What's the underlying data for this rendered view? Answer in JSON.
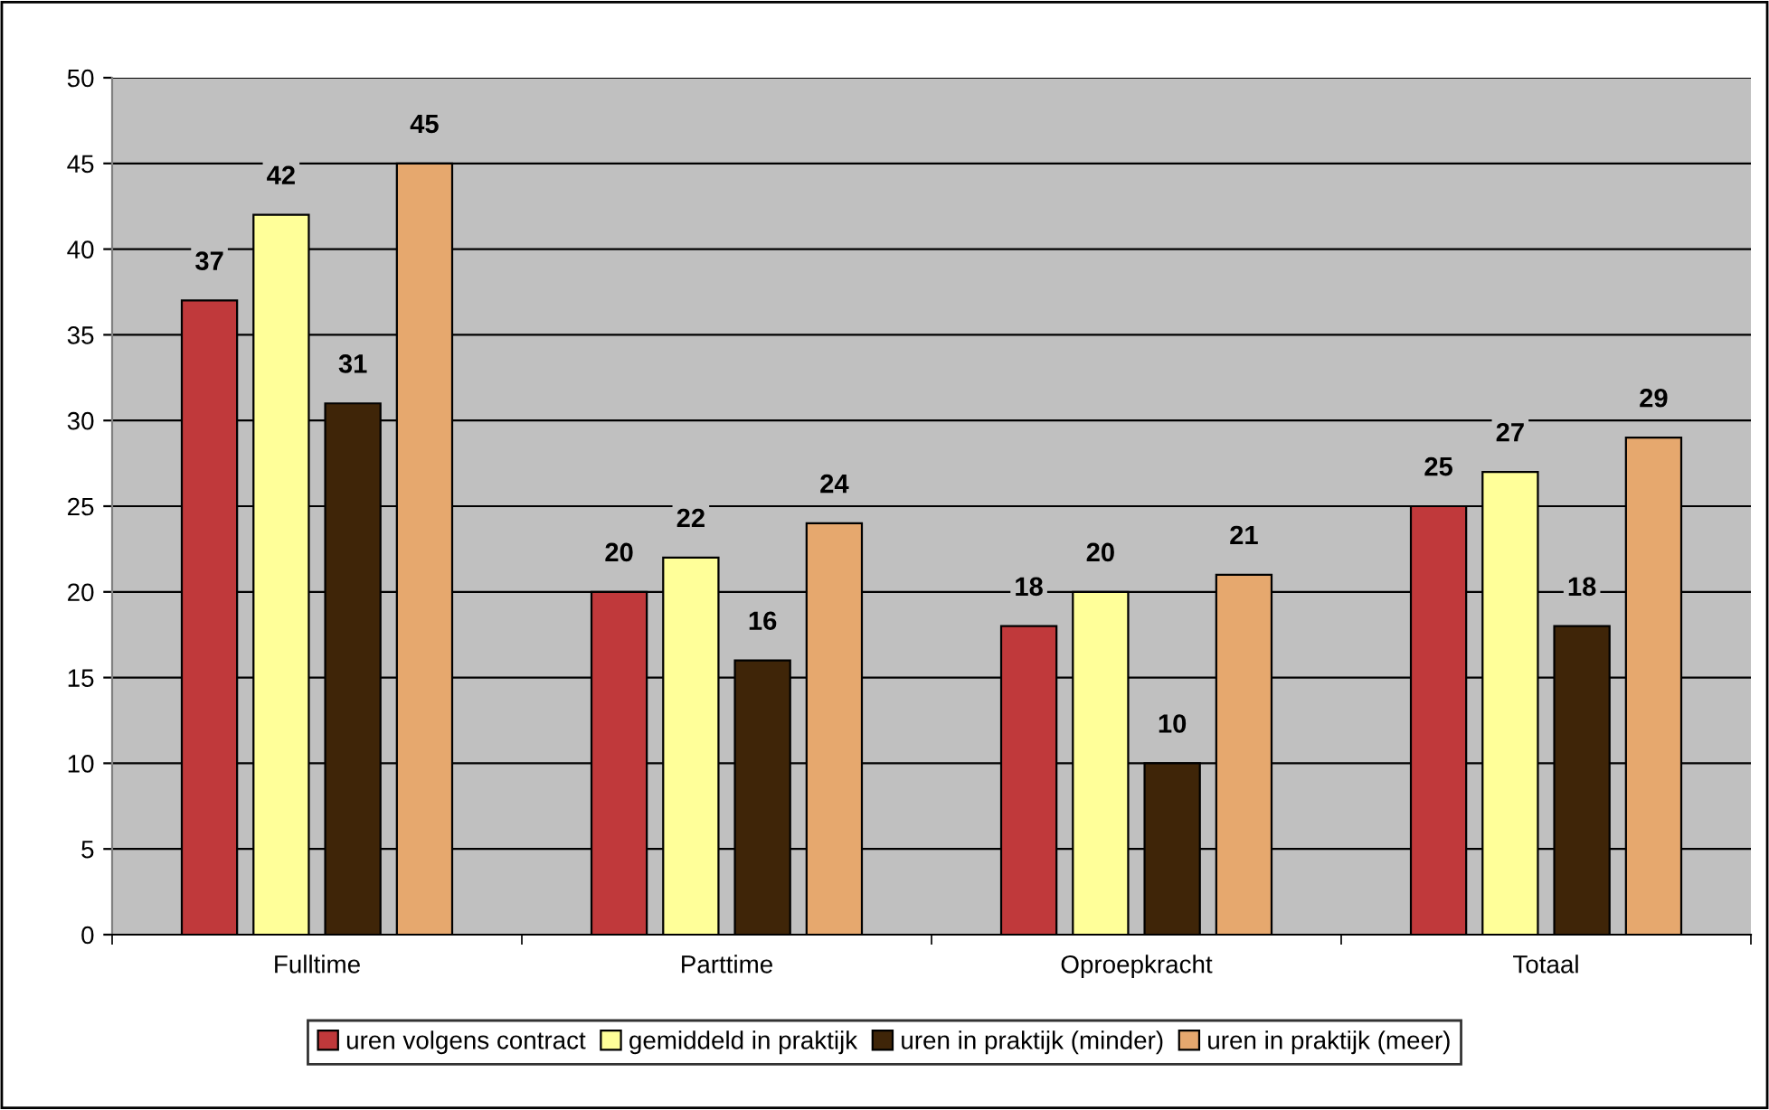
{
  "chart_data": {
    "type": "bar",
    "categories": [
      "Fulltime",
      "Parttime",
      "Oproepkracht",
      "Totaal"
    ],
    "series": [
      {
        "name": "uren volgens contract",
        "color": "#c0393b",
        "values": [
          37,
          20,
          18,
          25
        ]
      },
      {
        "name": "gemiddeld in praktijk",
        "color": "#ffff99",
        "values": [
          42,
          22,
          20,
          27
        ]
      },
      {
        "name": "uren in praktijk (minder)",
        "color": "#3f2508",
        "values": [
          31,
          16,
          10,
          18
        ]
      },
      {
        "name": "uren in praktijk (meer)",
        "color": "#e6a86e",
        "values": [
          45,
          24,
          21,
          29
        ]
      }
    ],
    "ylim": [
      0,
      50
    ],
    "yticks": [
      0,
      5,
      10,
      15,
      20,
      25,
      30,
      35,
      40,
      45,
      50
    ],
    "grid": "y",
    "legend": "bottom",
    "data_labels": true
  }
}
